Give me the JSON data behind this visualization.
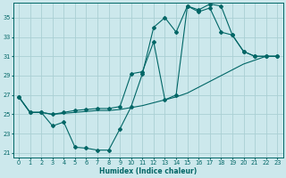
{
  "xlabel": "Humidex (Indice chaleur)",
  "bg_color": "#cce8ec",
  "grid_color": "#aacfd4",
  "line_color": "#006666",
  "xlim": [
    -0.5,
    23.5
  ],
  "ylim": [
    20.5,
    36.5
  ],
  "xticks": [
    0,
    1,
    2,
    3,
    4,
    5,
    6,
    7,
    8,
    9,
    10,
    11,
    12,
    13,
    14,
    15,
    16,
    17,
    18,
    19,
    20,
    21,
    22,
    23
  ],
  "yticks": [
    21,
    23,
    25,
    27,
    29,
    31,
    33,
    35
  ],
  "line1_y": [
    26.8,
    25.2,
    25.2,
    23.8,
    24.2,
    21.6,
    21.5,
    21.3,
    21.3,
    23.5,
    25.8,
    29.2,
    34.0,
    35.0,
    33.5,
    36.2,
    35.8,
    36.4,
    36.2,
    33.2,
    31.5,
    31.0,
    31.0,
    31.0
  ],
  "line2_y": [
    26.8,
    25.2,
    25.2,
    25.0,
    25.1,
    25.2,
    25.3,
    25.4,
    25.4,
    25.5,
    25.7,
    25.9,
    26.2,
    26.5,
    26.8,
    27.2,
    27.8,
    28.4,
    29.0,
    29.6,
    30.2,
    30.6,
    31.0,
    31.0
  ],
  "line3_y": [
    26.8,
    25.2,
    25.2,
    25.0,
    25.2,
    25.4,
    25.5,
    25.6,
    25.6,
    25.8,
    29.2,
    29.4,
    32.5,
    26.5,
    27.0,
    36.2,
    35.6,
    36.0,
    33.5,
    33.2,
    31.5,
    31.0,
    31.0,
    31.0
  ]
}
